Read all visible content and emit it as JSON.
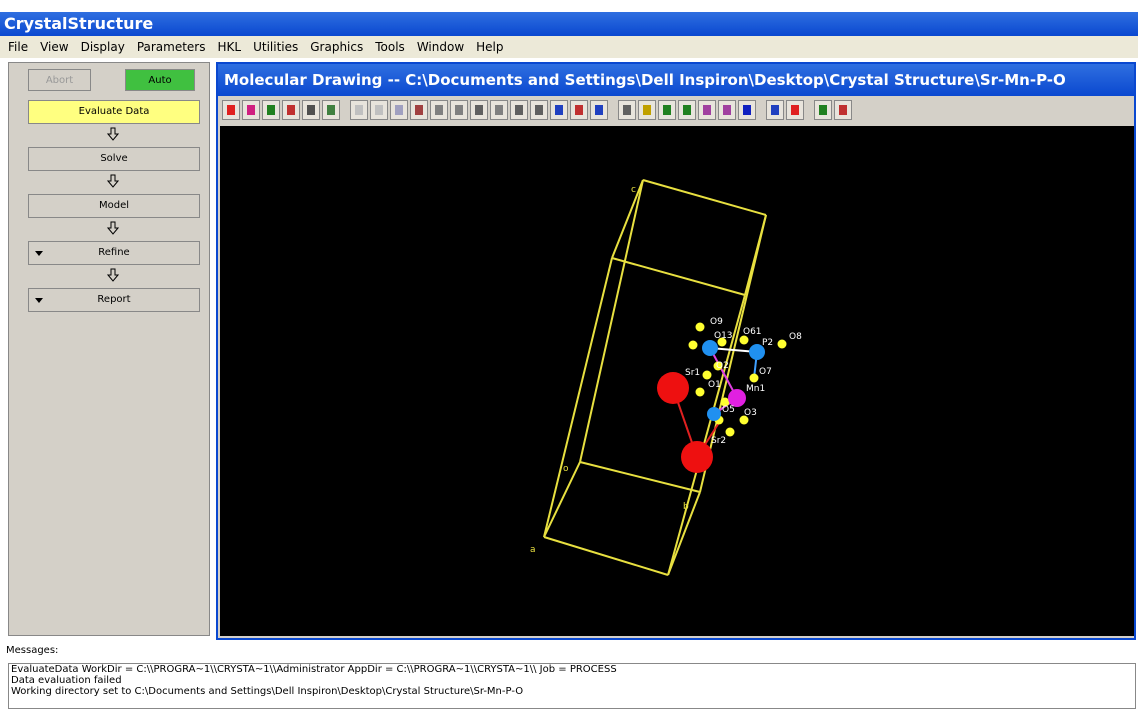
{
  "app": {
    "title": "CrystalStructure",
    "menu": [
      "File",
      "View",
      "Display",
      "Parameters",
      "HKL",
      "Utilities",
      "Graphics",
      "Tools",
      "Window",
      "Help"
    ]
  },
  "sidebar": {
    "abort": "Abort",
    "auto": "Auto",
    "steps": [
      "Evaluate Data",
      "Solve",
      "Model",
      "Refine",
      "Report"
    ]
  },
  "drawing": {
    "title": "Molecular Drawing -- C:\\Documents and Settings\\Dell Inspiron\\Desktop\\Crystal Structure\\Sr-Mn-P-O",
    "axis_labels": [
      "c",
      "o",
      "a",
      "b"
    ],
    "atom_labels": [
      "O9",
      "O13",
      "O61",
      "P2",
      "O8",
      "O2",
      "Sr1",
      "O1",
      "Mn1",
      "O7",
      "O5",
      "O3",
      "Sr2"
    ]
  },
  "messages": {
    "label": "Messages:",
    "lines": [
      "EvaluateData WorkDir = C:\\\\PROGRA~1\\\\CRYSTA~1\\\\Administrator AppDir = C:\\\\PROGRA~1\\\\CRYSTA~1\\\\ Job = PROCESS",
      "Data evaluation failed",
      "Working directory set to C:\\Documents and Settings\\Dell Inspiron\\Desktop\\Crystal Structure\\Sr-Mn-P-O"
    ]
  }
}
